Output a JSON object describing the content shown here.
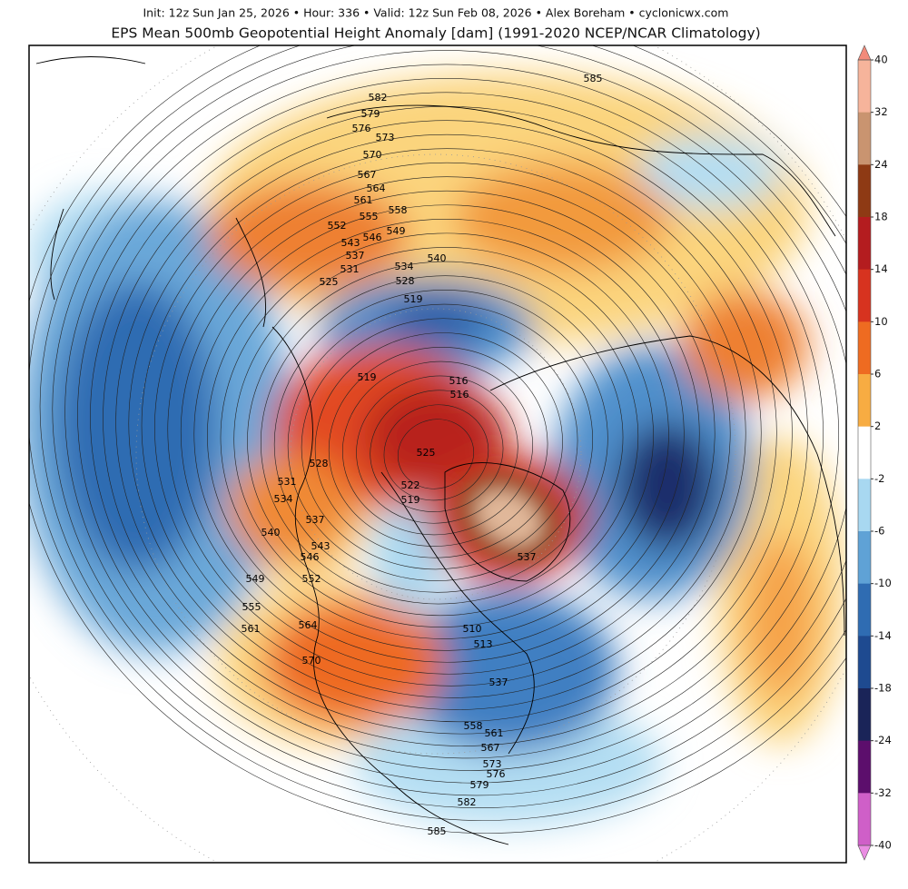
{
  "header": {
    "info": "Init: 12z Sun Jan 25, 2026 • Hour: 336 • Valid: 12z Sun Feb 08, 2026 • Alex Boreham • cyclonicwx.com",
    "title": "EPS Mean 500mb Geopotential Height Anomaly [dam] (1991-2020 NCEP/NCAR Climatology)"
  },
  "colorbar": {
    "ticks": [
      40,
      32,
      24,
      18,
      14,
      10,
      6,
      2,
      -2,
      -6,
      -10,
      -14,
      -18,
      -24,
      -32,
      -40
    ],
    "colors": [
      "#f6b49b",
      "#c99470",
      "#8e3a14",
      "#b41c1f",
      "#d7331f",
      "#ee6b21",
      "#f7ac42",
      "#ffffff",
      "#a8d8f1",
      "#5fa2d6",
      "#2f6cb2",
      "#1e4a90",
      "#1a2458",
      "#5c0e6c",
      "#cf5fc8"
    ],
    "over_color": "#f28a7a",
    "under_color": "#ea8de3"
  },
  "contour_labels": [
    585,
    582,
    579,
    576,
    573,
    570,
    567,
    564,
    561,
    558,
    555,
    552,
    549,
    546,
    543,
    540,
    537,
    534,
    531,
    528,
    525,
    519,
    519,
    516,
    516,
    525,
    528,
    531,
    534,
    522,
    519,
    537,
    540,
    543,
    546,
    552,
    549,
    555,
    561,
    564,
    570,
    510,
    513,
    537,
    537,
    558,
    561,
    567,
    573,
    576,
    579,
    582,
    585
  ]
}
